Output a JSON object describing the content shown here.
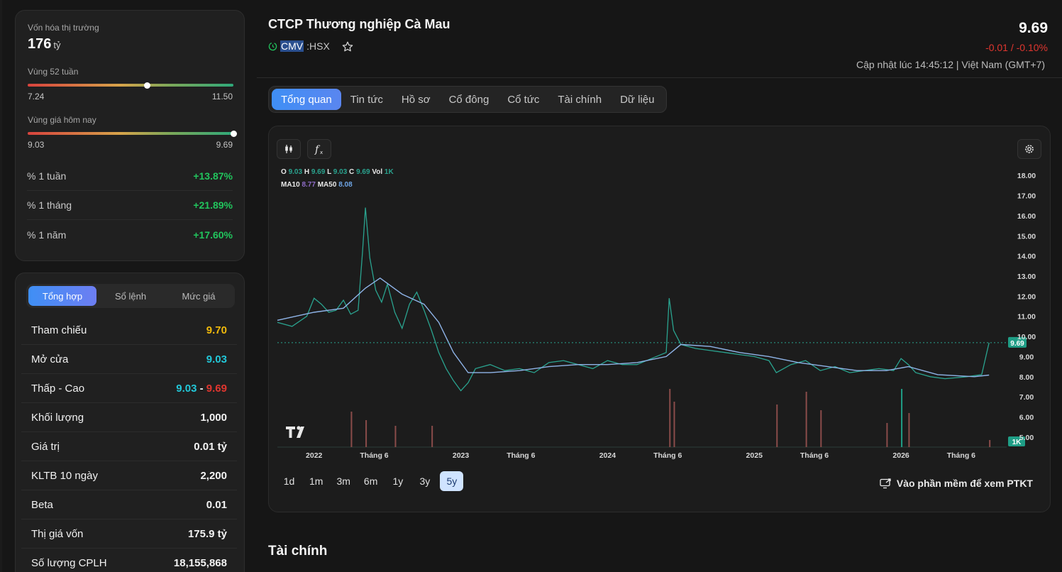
{
  "market_cap": {
    "label": "Vốn hóa thị trường",
    "value": "176",
    "unit": "tỷ"
  },
  "range_52w": {
    "label": "Vùng 52 tuần",
    "low": "7.24",
    "high": "11.50",
    "position": 0.58
  },
  "range_today": {
    "label": "Vùng giá hôm nay",
    "low": "9.03",
    "high": "9.69",
    "position": 1.0
  },
  "performance": [
    {
      "label": "% 1 tuần",
      "value": "+13.87%"
    },
    {
      "label": "% 1 tháng",
      "value": "+21.89%"
    },
    {
      "label": "% 1 năm",
      "value": "+17.60%"
    }
  ],
  "summary_tabs": [
    "Tổng hợp",
    "Sổ lệnh",
    "Mức giá"
  ],
  "summary": {
    "ref": {
      "label": "Tham chiếu",
      "value": "9.70"
    },
    "open": {
      "label": "Mở cửa",
      "value": "9.03"
    },
    "lowhigh": {
      "label": "Thấp - Cao",
      "low": "9.03",
      "sep": "-",
      "high": "9.69"
    },
    "volume": {
      "label": "Khối lượng",
      "value": "1,000"
    },
    "turnover": {
      "label": "Giá trị",
      "value": "0.01 tỷ"
    },
    "avgvol": {
      "label": "KLTB 10 ngày",
      "value": "2,200"
    },
    "beta": {
      "label": "Beta",
      "value": "0.01"
    },
    "marketcap": {
      "label": "Thị giá vốn",
      "value": "175.9 tỷ"
    },
    "shares": {
      "label": "Số lượng CPLH",
      "value": "18,155,868"
    }
  },
  "header": {
    "company": "CTCP Thương nghiệp Cà Mau",
    "ticker": "CMV",
    "exchange": ":HSX",
    "price": "9.69",
    "change": "-0.01 / -0.10%",
    "updated": "Cập nhật lúc 14:45:12 | Việt Nam (GMT+7)"
  },
  "tabs": [
    "Tổng quan",
    "Tin tức",
    "Hồ sơ",
    "Cổ đông",
    "Cổ tức",
    "Tài chính",
    "Dữ liệu"
  ],
  "legend": {
    "o_label": "O",
    "o": "9.03",
    "h_label": "H",
    "h": "9.69",
    "l_label": "L",
    "l": "9.03",
    "c_label": "C",
    "c": "9.69",
    "vol_label": "Vol",
    "vol": "1K",
    "ma10_label": "MA10",
    "ma10": "8.77",
    "ma50_label": "MA50",
    "ma50": "8.08"
  },
  "chart_data": {
    "type": "line",
    "x_ticks": [
      "2022",
      "Tháng 6",
      "2023",
      "Tháng 6",
      "2024",
      "Tháng 6",
      "2025",
      "Tháng 6",
      "2026",
      "Tháng 6"
    ],
    "y_ticks": [
      "18.00",
      "17.00",
      "16.00",
      "15.00",
      "14.00",
      "13.00",
      "12.00",
      "11.00",
      "10.00",
      "9.00",
      "8.00",
      "7.00",
      "6.00",
      "5.00"
    ],
    "ylim": [
      4.5,
      18.5
    ],
    "last_price_label": "9.69",
    "last_volume_label": "1K",
    "series": [
      {
        "values": [
          [
            2021.75,
            10.7
          ],
          [
            2021.85,
            10.5
          ],
          [
            2021.95,
            11.0
          ],
          [
            2022.0,
            11.9
          ],
          [
            2022.05,
            11.6
          ],
          [
            2022.1,
            11.2
          ],
          [
            2022.15,
            11.3
          ],
          [
            2022.2,
            11.8
          ],
          [
            2022.25,
            11.1
          ],
          [
            2022.3,
            11.3
          ],
          [
            2022.33,
            14.2
          ],
          [
            2022.35,
            16.4
          ],
          [
            2022.38,
            13.9
          ],
          [
            2022.42,
            12.3
          ],
          [
            2022.46,
            11.7
          ],
          [
            2022.5,
            12.6
          ],
          [
            2022.55,
            11.2
          ],
          [
            2022.6,
            10.4
          ],
          [
            2022.65,
            11.6
          ],
          [
            2022.7,
            12.2
          ],
          [
            2022.75,
            11.3
          ],
          [
            2022.8,
            10.3
          ],
          [
            2022.85,
            9.2
          ],
          [
            2022.9,
            8.4
          ],
          [
            2022.95,
            7.8
          ],
          [
            2023.0,
            7.3
          ],
          [
            2023.05,
            7.7
          ],
          [
            2023.1,
            8.4
          ],
          [
            2023.2,
            8.6
          ],
          [
            2023.3,
            8.3
          ],
          [
            2023.4,
            8.4
          ],
          [
            2023.5,
            8.2
          ],
          [
            2023.6,
            8.7
          ],
          [
            2023.7,
            8.8
          ],
          [
            2023.8,
            8.6
          ],
          [
            2023.9,
            8.4
          ],
          [
            2024.0,
            8.8
          ],
          [
            2024.1,
            8.6
          ],
          [
            2024.2,
            8.6
          ],
          [
            2024.3,
            8.9
          ],
          [
            2024.4,
            9.2
          ],
          [
            2024.42,
            11.9
          ],
          [
            2024.45,
            10.3
          ],
          [
            2024.5,
            9.6
          ],
          [
            2024.6,
            9.4
          ],
          [
            2024.7,
            9.3
          ],
          [
            2024.8,
            9.2
          ],
          [
            2024.9,
            9.1
          ],
          [
            2025.0,
            9.0
          ],
          [
            2025.1,
            8.8
          ],
          [
            2025.15,
            8.2
          ],
          [
            2025.25,
            8.6
          ],
          [
            2025.35,
            8.8
          ],
          [
            2025.45,
            8.3
          ],
          [
            2025.55,
            8.5
          ],
          [
            2025.65,
            8.2
          ],
          [
            2025.75,
            8.3
          ],
          [
            2025.85,
            8.4
          ],
          [
            2025.95,
            8.3
          ],
          [
            2026.0,
            8.9
          ],
          [
            2026.05,
            8.6
          ],
          [
            2026.1,
            8.2
          ],
          [
            2026.2,
            8.0
          ],
          [
            2026.3,
            7.9
          ],
          [
            2026.45,
            8.0
          ],
          [
            2026.55,
            8.1
          ],
          [
            2026.6,
            9.69
          ]
        ]
      },
      {
        "values": [
          [
            2021.75,
            10.8
          ],
          [
            2022.0,
            11.2
          ],
          [
            2022.2,
            11.4
          ],
          [
            2022.35,
            12.4
          ],
          [
            2022.45,
            12.9
          ],
          [
            2022.6,
            12.1
          ],
          [
            2022.75,
            11.6
          ],
          [
            2022.85,
            10.7
          ],
          [
            2022.95,
            9.2
          ],
          [
            2023.05,
            8.2
          ],
          [
            2023.2,
            8.2
          ],
          [
            2023.4,
            8.3
          ],
          [
            2023.6,
            8.5
          ],
          [
            2023.8,
            8.6
          ],
          [
            2024.0,
            8.6
          ],
          [
            2024.2,
            8.7
          ],
          [
            2024.4,
            9.0
          ],
          [
            2024.5,
            9.6
          ],
          [
            2024.7,
            9.5
          ],
          [
            2024.9,
            9.2
          ],
          [
            2025.1,
            9.0
          ],
          [
            2025.3,
            8.7
          ],
          [
            2025.5,
            8.5
          ],
          [
            2025.7,
            8.3
          ],
          [
            2025.9,
            8.3
          ],
          [
            2026.05,
            8.5
          ],
          [
            2026.25,
            8.1
          ],
          [
            2026.5,
            8.0
          ],
          [
            2026.6,
            8.08
          ]
        ]
      }
    ]
  },
  "time_ranges": [
    "1d",
    "1m",
    "3m",
    "6m",
    "1y",
    "3y",
    "5y"
  ],
  "active_range": "5y",
  "ptkt_label": "Vào phần mềm để xem PTKT",
  "section_title": "Tài chính",
  "colors": {
    "up": "#21c55d",
    "down": "#e0362f",
    "accent": "#3f8ff5",
    "ref": "#f0b90b",
    "floor_open": "#22c7d8"
  }
}
